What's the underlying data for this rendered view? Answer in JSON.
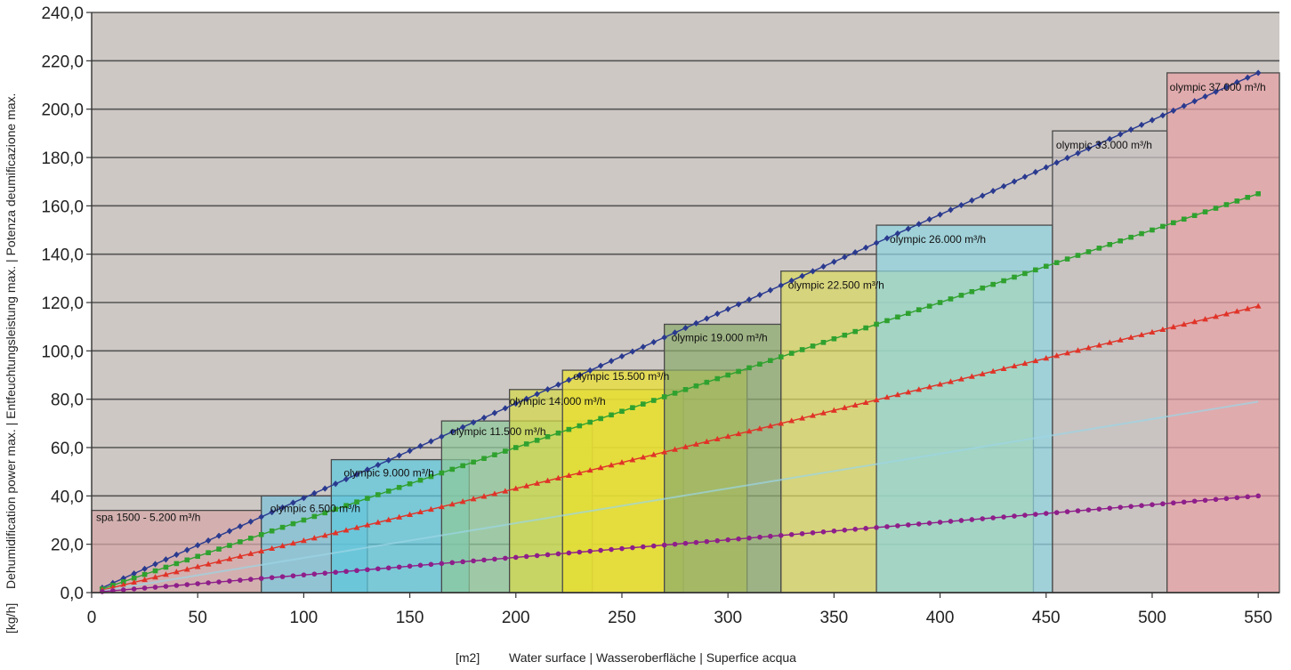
{
  "chart_data": {
    "type": "line",
    "title": "",
    "xlabel_unit": "[m2]",
    "xlabel": "Water surface | Wasseroberfläche | Superfice acqua",
    "ylabel_unit": "[kg/h]",
    "ylabel": "Dehumidification power max. | Entfeuchtungsleistung max. | Potenza deumificazione max.",
    "xlim": [
      0,
      560
    ],
    "ylim": [
      0,
      240
    ],
    "xticks": [
      0,
      50,
      100,
      150,
      200,
      250,
      300,
      350,
      400,
      450,
      500,
      550
    ],
    "yticks": [
      "0,0",
      "20,0",
      "40,0",
      "60,0",
      "80,0",
      "100,0",
      "120,0",
      "140,0",
      "160,0",
      "180,0",
      "200,0",
      "220,0",
      "240,0"
    ],
    "grid": "horizontal",
    "background": "#cdc8c4",
    "series": [
      {
        "color": "#2a3a8f",
        "marker": "diamond",
        "x_start": 5,
        "x_end": 550,
        "x_step": 5,
        "y_at_start": 2.0,
        "y_at_end": 215.0
      },
      {
        "color": "#2fa12f",
        "marker": "square",
        "x_start": 5,
        "x_end": 550,
        "x_step": 5,
        "y_at_start": 1.5,
        "y_at_end": 165.0
      },
      {
        "color": "#e03328",
        "marker": "triangle",
        "x_start": 5,
        "x_end": 550,
        "x_step": 5,
        "y_at_start": 1.0,
        "y_at_end": 118.5
      },
      {
        "color": "#9bd6e6",
        "marker": "none",
        "x_start": 5,
        "x_end": 550,
        "x_step": 5,
        "y_at_start": 0.7,
        "y_at_end": 79.0
      },
      {
        "color": "#8e1e8a",
        "marker": "circle",
        "x_start": 5,
        "x_end": 550,
        "x_step": 5,
        "y_at_start": 0.4,
        "y_at_end": 40.0
      }
    ],
    "ranges": [
      {
        "label": "spa 1500 - 5.200 m³/h",
        "x0": 0,
        "x1": 80,
        "ymax": 34,
        "color": "#d6a6a6"
      },
      {
        "label": "olympic 6.500 m³/h",
        "x0": 80,
        "x1": 130,
        "ymax": 40,
        "color": "#7cc0d8"
      },
      {
        "label": "olympic 9.000 m³/h",
        "x0": 113,
        "x1": 178,
        "ymax": 55,
        "color": "#5cc7dc"
      },
      {
        "label": "olympic 11.500 m³/h",
        "x0": 165,
        "x1": 236,
        "ymax": 71,
        "color": "#8ec99a"
      },
      {
        "label": "olympic 14.000 m³/h",
        "x0": 197,
        "x1": 279,
        "ymax": 84,
        "color": "#d6d94a"
      },
      {
        "label": "olympic 15.500 m³/h",
        "x0": 222,
        "x1": 309,
        "ymax": 92,
        "color": "#ece02c"
      },
      {
        "label": "olympic 19.000 m³/h",
        "x0": 270,
        "x1": 325,
        "ymax": 111,
        "color": "#8caa6c"
      },
      {
        "label": "olympic 22.500 m³/h",
        "x0": 325,
        "x1": 444,
        "ymax": 133,
        "color": "#d9d860"
      },
      {
        "label": "olympic 26.000 m³/h",
        "x0": 370,
        "x1": 453,
        "ymax": 152,
        "color": "#8fd4e0"
      },
      {
        "label": "olympic 33.000 m³/h",
        "x0": 453,
        "x1": 507,
        "ymax": 191,
        "color": "#c8c2c0"
      },
      {
        "label": "olympic 37.000 m³/h",
        "x0": 507,
        "x1": 560,
        "ymax": 215,
        "color": "#e7a0a4"
      }
    ]
  }
}
